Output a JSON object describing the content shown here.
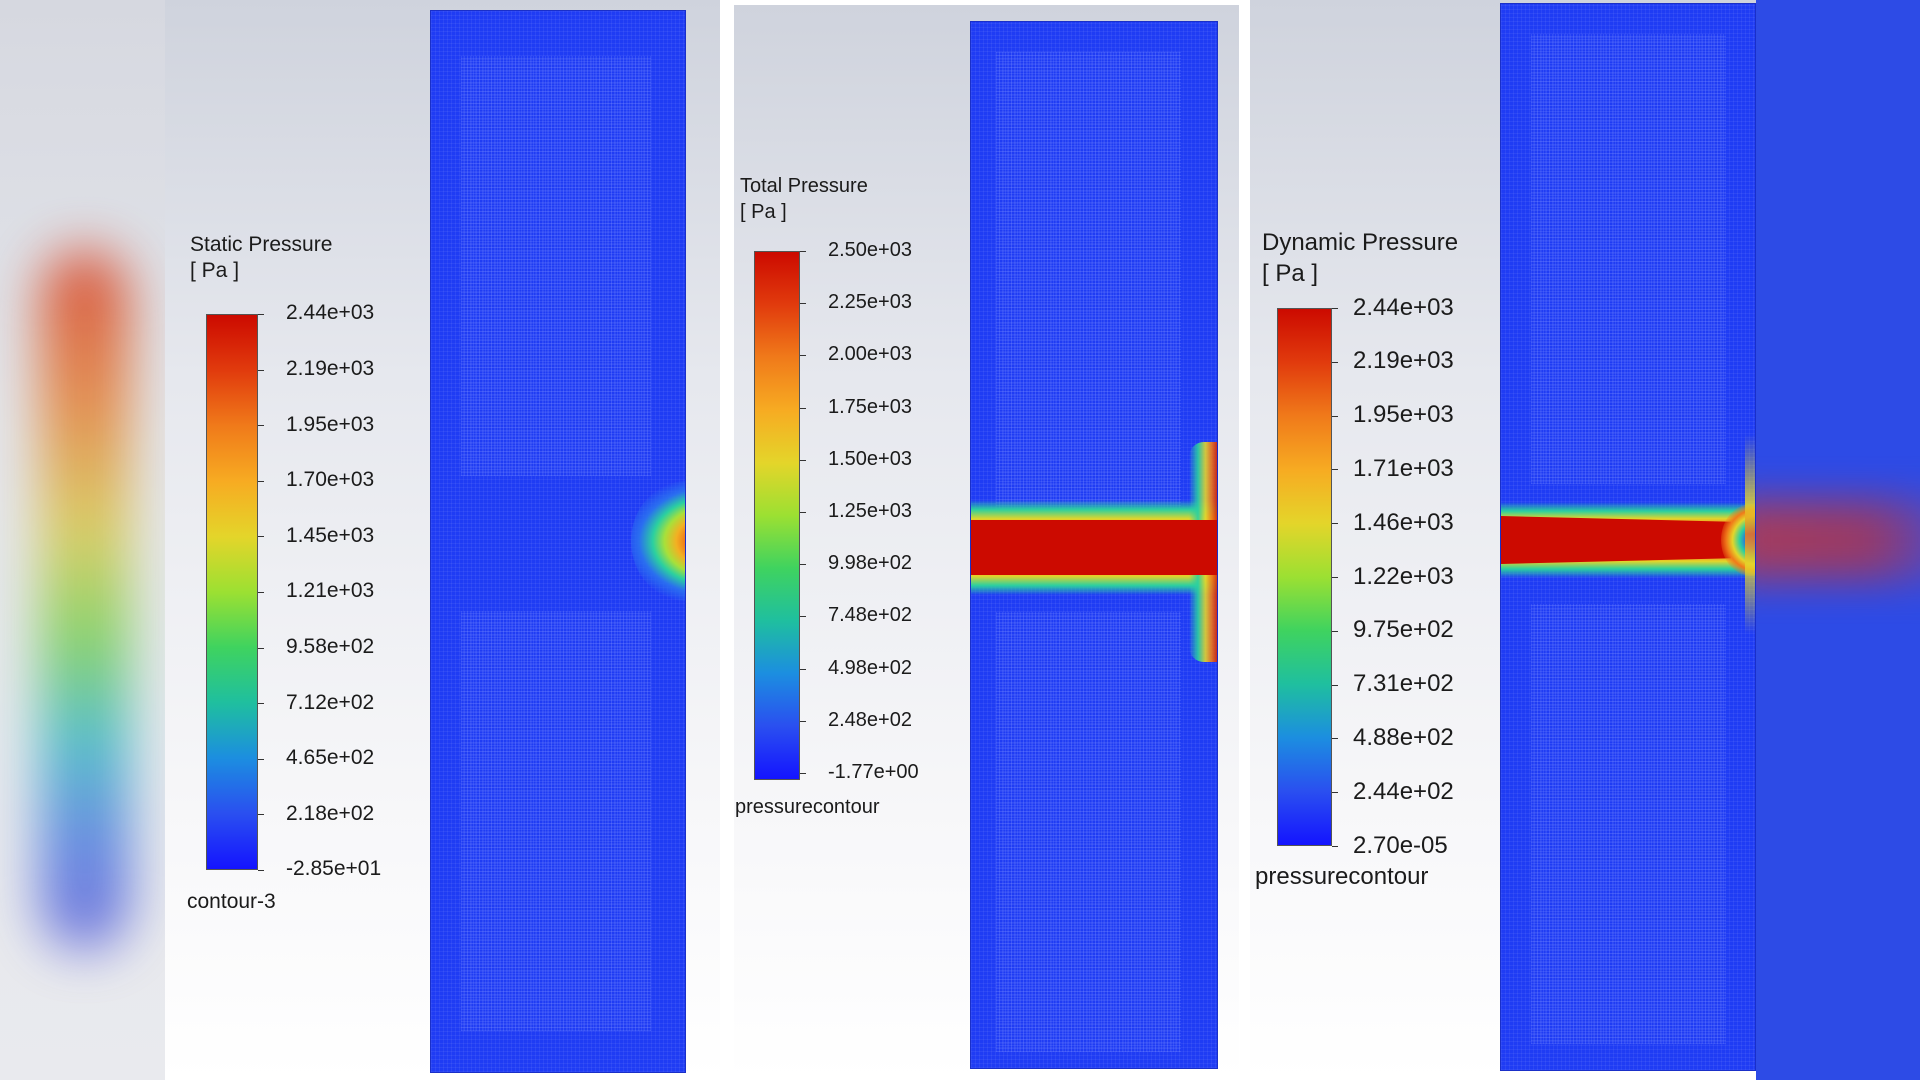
{
  "panels": [
    {
      "title": "Static Pressure",
      "unit": "[ Pa ]",
      "footer": "contour-3",
      "ticks": [
        "2.44e+03",
        "2.19e+03",
        "1.95e+03",
        "1.70e+03",
        "1.45e+03",
        "1.21e+03",
        "9.58e+02",
        "7.12e+02",
        "4.65e+02",
        "2.18e+02",
        "-2.85e+01"
      ]
    },
    {
      "title": "Total Pressure",
      "unit": "[ Pa ]",
      "footer": "pressurecontour",
      "ticks": [
        "2.50e+03",
        "2.25e+03",
        "2.00e+03",
        "1.75e+03",
        "1.50e+03",
        "1.25e+03",
        "9.98e+02",
        "7.48e+02",
        "4.98e+02",
        "2.48e+02",
        "-1.77e+00"
      ]
    },
    {
      "title": "Dynamic Pressure",
      "unit": "[ Pa ]",
      "footer": "pressurecontour",
      "ticks": [
        "2.44e+03",
        "2.19e+03",
        "1.95e+03",
        "1.71e+03",
        "1.46e+03",
        "1.22e+03",
        "9.75e+02",
        "7.31e+02",
        "4.88e+02",
        "2.44e+02",
        "2.70e-05"
      ]
    }
  ],
  "colormap": {
    "high": "#cc0a00",
    "low": "#1414ff",
    "field_background": "#1f3cf4"
  }
}
